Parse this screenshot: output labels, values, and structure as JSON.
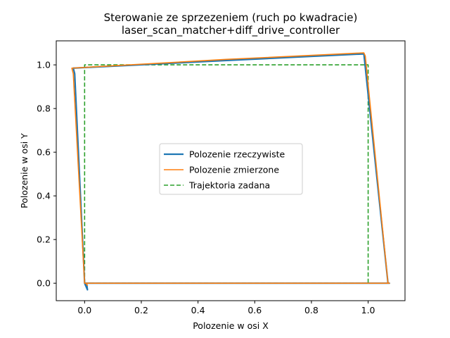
{
  "chart_data": {
    "type": "line",
    "title": "Sterowanie ze sprzezeniem (ruch po kwadracie)",
    "subtitle": "laser_scan_matcher+diff_drive_controller",
    "xlabel": "Polozenie w osi X",
    "ylabel": "Polozenie w osi Y",
    "xlim": [
      -0.1,
      1.13
    ],
    "ylim": [
      -0.08,
      1.11
    ],
    "xticks": [
      0.0,
      0.2,
      0.4,
      0.6,
      0.8,
      1.0
    ],
    "yticks": [
      0.0,
      0.2,
      0.4,
      0.6,
      0.8,
      1.0
    ],
    "xtick_labels": [
      "0.0",
      "0.2",
      "0.4",
      "0.6",
      "0.8",
      "1.0"
    ],
    "ytick_labels": [
      "0.0",
      "0.2",
      "0.4",
      "0.6",
      "0.8",
      "1.0"
    ],
    "legend_position": "center",
    "series": [
      {
        "name": "Polozenie rzeczywiste",
        "color": "#1f77b4",
        "style": "solid",
        "x": [
          0.01,
          0.007,
          0.005,
          0.0,
          0.0,
          0.5,
          1.0,
          1.075,
          1.07,
          0.985,
          0.98,
          0.5,
          -0.04,
          -0.035,
          0.0,
          0.01
        ],
        "y": [
          -0.03,
          0.0,
          0.0,
          0.0,
          0.0,
          0.0,
          0.0,
          0.0,
          0.0,
          1.05,
          1.05,
          1.02,
          0.985,
          0.96,
          0.0,
          -0.03
        ]
      },
      {
        "name": "Polozenie zmierzone",
        "color": "#ff7f0e",
        "style": "solid",
        "x": [
          0.01,
          0.005,
          0.0,
          0.5,
          1.0,
          1.075,
          1.07,
          0.99,
          0.985,
          0.5,
          -0.045,
          -0.04,
          0.0,
          0.005
        ],
        "y": [
          -0.01,
          0.0,
          0.0,
          0.0,
          0.0,
          0.0,
          0.0,
          1.04,
          1.055,
          1.025,
          0.985,
          0.96,
          0.0,
          0.0
        ]
      },
      {
        "name": "Trajektoria zadana",
        "color": "#2ca02c",
        "style": "dashed",
        "x": [
          0.0,
          0.0,
          1.0,
          1.0,
          0.0
        ],
        "y": [
          0.0,
          1.0,
          1.0,
          0.0,
          0.0
        ]
      }
    ]
  }
}
